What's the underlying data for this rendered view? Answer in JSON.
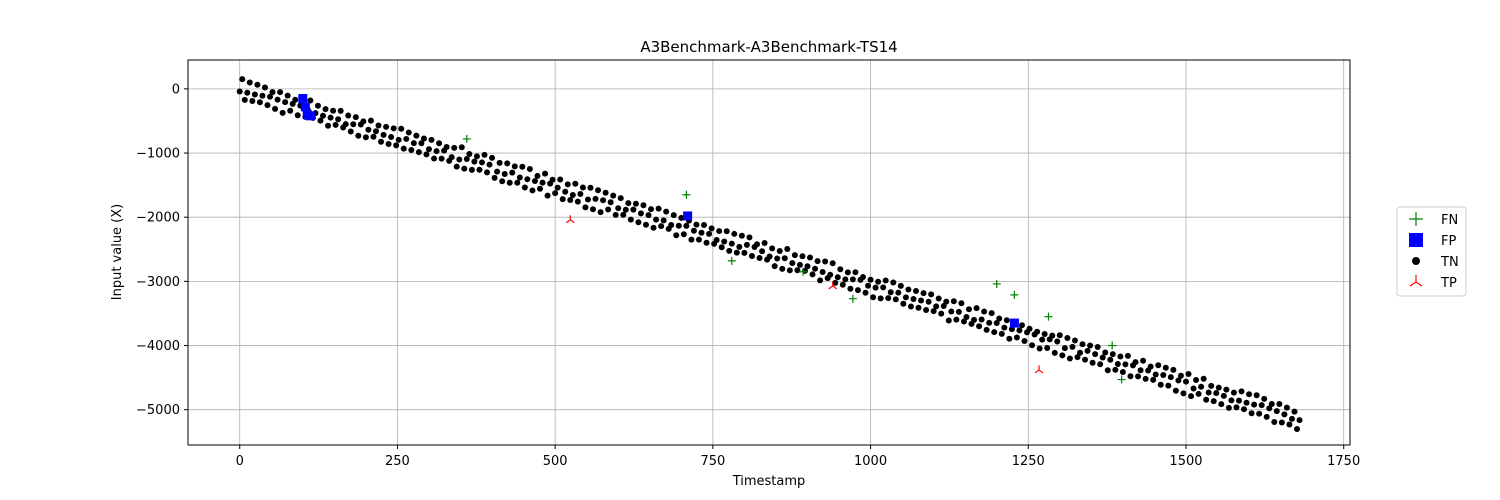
{
  "chart_data": {
    "type": "scatter",
    "title": "A3Benchmark-A3Benchmark-TS14",
    "xlabel": "Timestamp",
    "ylabel": "Input value (X)",
    "xlim": [
      -82,
      1760
    ],
    "ylim": [
      -5550,
      450
    ],
    "xticks": [
      0,
      250,
      500,
      750,
      1000,
      1250,
      1500,
      1750
    ],
    "yticks": [
      0,
      -1000,
      -2000,
      -3000,
      -4000,
      -5000
    ],
    "xtick_labels": [
      "0",
      "250",
      "500",
      "750",
      "1000",
      "1250",
      "1500",
      "1750"
    ],
    "ytick_labels": [
      "0",
      "−1000",
      "−2000",
      "−3000",
      "−4000",
      "−5000"
    ],
    "grid": true,
    "legend_position": "outside-right",
    "tn_trend": {
      "x_start": 0,
      "x_end": 1680,
      "y_start": 0,
      "y_end": -5150,
      "amplitude": 150,
      "period": 12,
      "step": 4
    },
    "series": [
      {
        "name": "FN",
        "marker": "plus",
        "color": "#008000",
        "points": [
          [
            360,
            -780
          ],
          [
            708,
            -1650
          ],
          [
            780,
            -2680
          ],
          [
            893,
            -2850
          ],
          [
            972,
            -3270
          ],
          [
            1200,
            -3040
          ],
          [
            1228,
            -3210
          ],
          [
            1282,
            -3550
          ],
          [
            1383,
            -4000
          ],
          [
            1398,
            -4530
          ]
        ]
      },
      {
        "name": "FP",
        "marker": "square",
        "color": "#0000ff",
        "points": [
          [
            100,
            -150
          ],
          [
            104,
            -280
          ],
          [
            107,
            -400
          ],
          [
            112,
            -420
          ],
          [
            710,
            -1980
          ],
          [
            1228,
            -3650
          ]
        ]
      },
      {
        "name": "TN",
        "marker": "circle",
        "color": "#000000",
        "points": []
      },
      {
        "name": "TP",
        "marker": "tri_up",
        "color": "#ff0000",
        "points": [
          [
            524,
            -2040
          ],
          [
            940,
            -3070
          ],
          [
            1267,
            -4380
          ]
        ]
      }
    ]
  }
}
